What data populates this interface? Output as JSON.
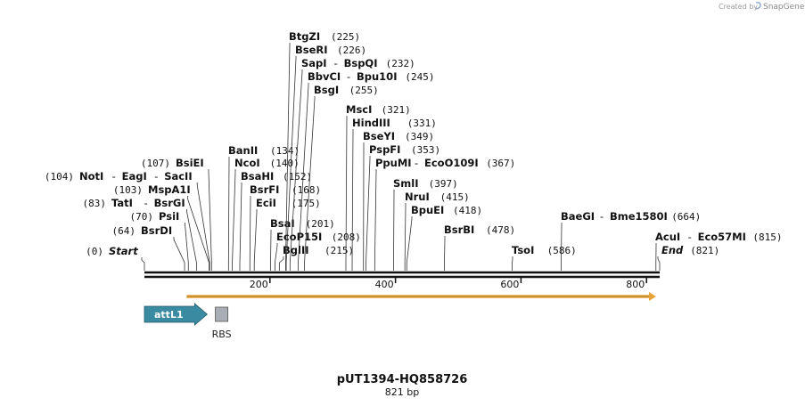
{
  "credit": {
    "prefix": "Created by",
    "brand": "SnapGene"
  },
  "sequence": {
    "name": "pUT1394-HQ858726",
    "length_label": "821 bp",
    "length_bp": 821
  },
  "colors": {
    "feature_arrow": "#3a8aa1",
    "orf_arrow": "#e7a43a",
    "rbs_box": "#a9adb5",
    "backbone": "#111111"
  },
  "ruler_ticks": [
    200,
    400,
    600,
    800
  ],
  "sites": [
    {
      "name": "Start",
      "pos": 0,
      "pos_label": "(0)",
      "italic": true
    },
    {
      "name": "BsrDI",
      "pos": 64,
      "pos_label": "(64)"
    },
    {
      "name": "PsiI",
      "pos": 70,
      "pos_label": "(70)"
    },
    {
      "name": "TatI",
      "name2": "BsrGI",
      "pos": 83,
      "pos_label": "(83)"
    },
    {
      "name": "MspA1I",
      "pos": 103,
      "pos_label": "(103)"
    },
    {
      "name": "NotI",
      "name2": "EagI",
      "name3": "SacII",
      "pos": 104,
      "pos_label": "(104)"
    },
    {
      "name": "BsiEI",
      "pos": 107,
      "pos_label": "(107)"
    },
    {
      "name": "BanII",
      "pos": 134,
      "pos_label": "(134)"
    },
    {
      "name": "NcoI",
      "pos": 140,
      "pos_label": "(140)"
    },
    {
      "name": "BsaHI",
      "pos": 152,
      "pos_label": "(152)"
    },
    {
      "name": "BsrFI",
      "pos": 168,
      "pos_label": "(168)"
    },
    {
      "name": "EciI",
      "pos": 175,
      "pos_label": "(175)"
    },
    {
      "name": "BsaI",
      "pos": 201,
      "pos_label": "(201)"
    },
    {
      "name": "EcoP15I",
      "pos": 208,
      "pos_label": "(208)"
    },
    {
      "name": "BglII",
      "pos": 215,
      "pos_label": "(215)"
    },
    {
      "name": "BtgZI",
      "pos": 225,
      "pos_label": "(225)"
    },
    {
      "name": "BseRI",
      "pos": 226,
      "pos_label": "(226)"
    },
    {
      "name": "SapI",
      "name2": "BspQI",
      "pos": 232,
      "pos_label": "(232)"
    },
    {
      "name": "BbvCI",
      "name2": "Bpu10I",
      "pos": 245,
      "pos_label": "(245)"
    },
    {
      "name": "BsgI",
      "pos": 255,
      "pos_label": "(255)"
    },
    {
      "name": "MscI",
      "pos": 321,
      "pos_label": "(321)"
    },
    {
      "name": "HindIII",
      "pos": 331,
      "pos_label": "(331)"
    },
    {
      "name": "BseYI",
      "pos": 349,
      "pos_label": "(349)"
    },
    {
      "name": "PspFI",
      "pos": 353,
      "pos_label": "(353)"
    },
    {
      "name": "PpuMI",
      "name2": "EcoO109I",
      "pos": 367,
      "pos_label": "(367)"
    },
    {
      "name": "SmlI",
      "pos": 397,
      "pos_label": "(397)"
    },
    {
      "name": "NruI",
      "pos": 415,
      "pos_label": "(415)"
    },
    {
      "name": "BpuEI",
      "pos": 418,
      "pos_label": "(418)"
    },
    {
      "name": "BsrBI",
      "pos": 478,
      "pos_label": "(478)"
    },
    {
      "name": "TsoI",
      "pos": 586,
      "pos_label": "(586)"
    },
    {
      "name": "BaeGI",
      "name2": "Bme1580I",
      "pos": 664,
      "pos_label": "(664)"
    },
    {
      "name": "AcuI",
      "name2": "Eco57MI",
      "pos": 815,
      "pos_label": "(815)"
    },
    {
      "name": "End",
      "pos": 821,
      "pos_label": "(821)",
      "italic": true
    }
  ],
  "features": [
    {
      "label": "attL1",
      "start": 0,
      "end": 100,
      "type": "arrow"
    },
    {
      "label": "RBS",
      "start": 113,
      "end": 133,
      "type": "box"
    }
  ],
  "orf": {
    "start": 73,
    "end": 821
  }
}
